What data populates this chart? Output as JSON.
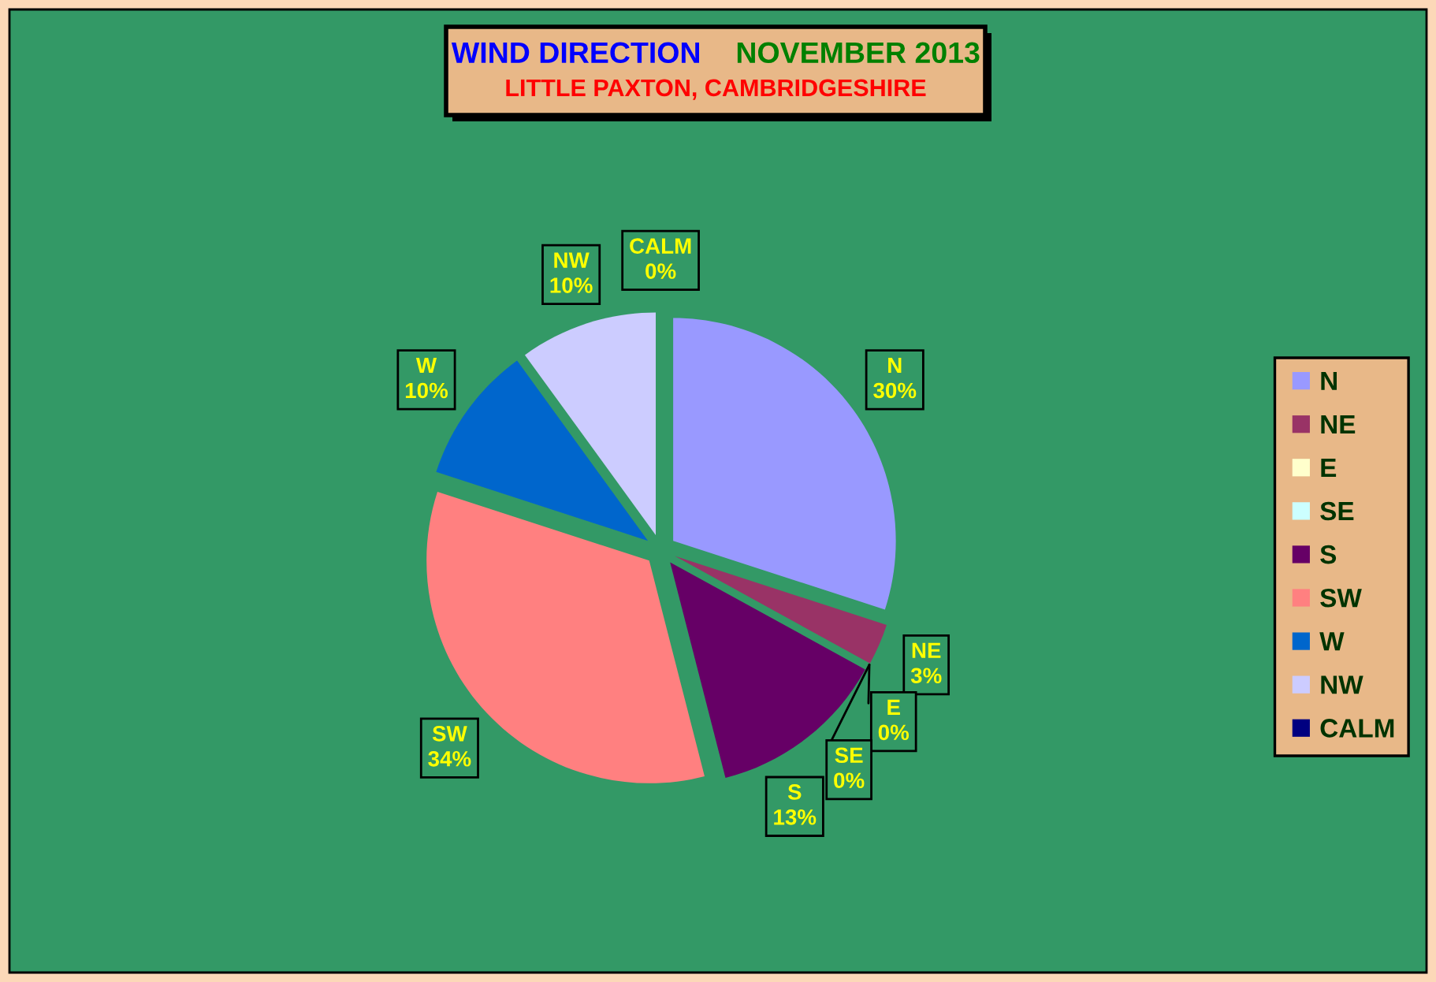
{
  "chart_data": {
    "type": "pie",
    "title": "WIND DIRECTION   NOVEMBER 2013",
    "subtitle": "LITTLE PAXTON, CAMBRIDGESHIRE",
    "categories": [
      "N",
      "NE",
      "E",
      "SE",
      "S",
      "SW",
      "W",
      "NW",
      "CALM"
    ],
    "values": [
      30,
      3,
      0,
      0,
      13,
      34,
      10,
      10,
      0
    ],
    "colors": [
      "#9999ff",
      "#993366",
      "#ffffcc",
      "#ccffff",
      "#660066",
      "#ff8080",
      "#0066cc",
      "#ccccff",
      "#000080"
    ],
    "value_labels": [
      "30%",
      "3%",
      "0%",
      "0%",
      "13%",
      "34%",
      "10%",
      "10%",
      "0%"
    ],
    "legend": "right"
  }
}
